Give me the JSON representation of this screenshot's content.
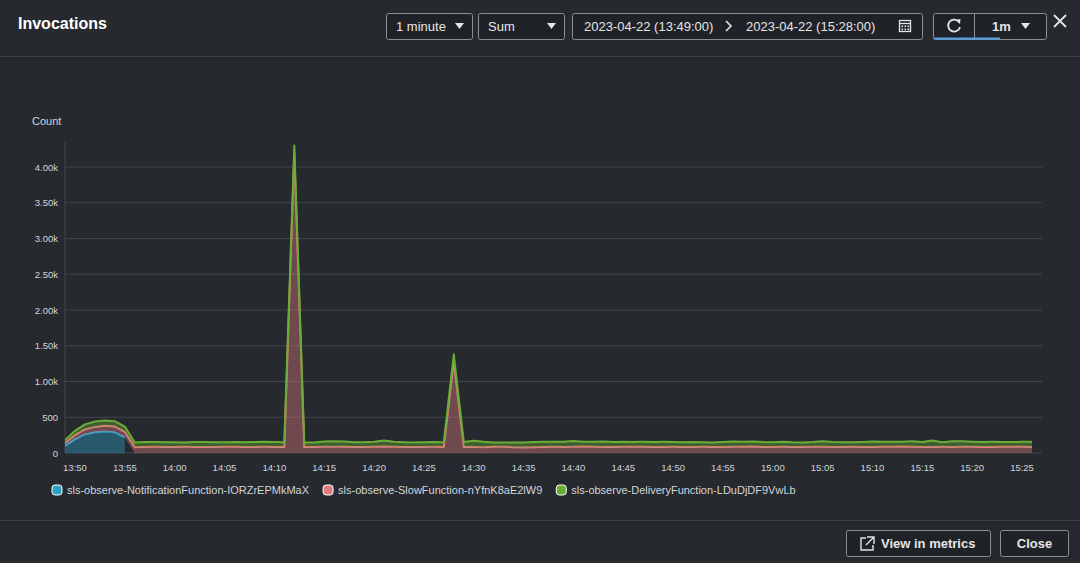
{
  "widget": {
    "period": "1 minute",
    "stat": "Sum",
    "range_start": "2023-04-22 (13:49:00)",
    "range_end": "2023-04-22 (15:28:00)",
    "refresh_interval": "1m",
    "buttons": [
      "View in metrics",
      "Close"
    ]
  },
  "chart_data": {
    "type": "area",
    "title": "Invocations",
    "stacked": true,
    "grid": true,
    "legend": "bottom",
    "y_label": "Count",
    "categories": [
      null,
      "13:50",
      null,
      null,
      null,
      null,
      "13:55",
      null,
      null,
      null,
      null,
      "14:00",
      null,
      null,
      null,
      null,
      "14:05",
      null,
      null,
      null,
      null,
      "14:10",
      null,
      null,
      null,
      null,
      "14:15",
      null,
      null,
      null,
      null,
      "14:20",
      null,
      null,
      null,
      null,
      "14:25",
      null,
      null,
      null,
      null,
      "14:30",
      null,
      null,
      null,
      null,
      "14:35",
      null,
      null,
      null,
      null,
      "14:40",
      null,
      null,
      null,
      null,
      "14:45",
      null,
      null,
      null,
      null,
      "14:50",
      null,
      null,
      null,
      null,
      "14:55",
      null,
      null,
      null,
      null,
      "15:00",
      null,
      null,
      null,
      null,
      "15:05",
      null,
      null,
      null,
      null,
      "15:10",
      null,
      null,
      null,
      null,
      "15:15",
      null,
      null,
      null,
      null,
      "15:20",
      null,
      null,
      null,
      null,
      "15:25",
      null
    ],
    "ylim": [
      0,
      4350
    ],
    "yticks": [
      0,
      500,
      {
        "value": 1000,
        "label": "1.00k"
      },
      {
        "value": 1500,
        "label": "1.50k"
      },
      {
        "value": 2000,
        "label": "2.00k"
      },
      {
        "value": 2500,
        "label": "2.50k"
      },
      {
        "value": 3000,
        "label": "3.00k"
      },
      {
        "value": 3500,
        "label": "3.50k"
      },
      {
        "value": 4000,
        "label": "4.00k"
      }
    ],
    "series": [
      {
        "name": "sls-observe-NotificationFunction-IORZrEPMkMaX",
        "color": "#2ea0c9",
        "values": [
          100,
          190,
          260,
          290,
          300,
          290,
          220,
          null,
          null,
          null,
          null,
          null,
          null,
          null,
          null,
          null,
          null,
          null,
          null,
          null,
          null,
          null,
          null,
          null,
          null,
          null,
          null,
          null,
          null,
          null,
          null,
          null,
          null,
          null,
          null,
          null,
          null,
          null,
          null,
          null,
          null,
          null,
          null,
          null,
          null,
          null,
          null,
          null,
          null,
          null,
          null,
          null,
          null,
          null,
          null,
          null,
          null,
          null,
          null,
          null,
          null,
          null,
          null,
          null,
          null,
          null,
          null,
          null,
          null,
          null,
          null,
          null,
          null,
          null,
          null,
          null,
          null,
          null,
          null,
          null,
          null,
          null,
          null,
          null,
          null,
          null,
          null,
          null,
          null,
          null,
          null,
          null,
          null,
          null,
          null,
          null,
          null,
          null
        ]
      },
      {
        "name": "sls-observe-SlowFunction-nYfnK8aE2lW9",
        "color": "#e07b7f",
        "values": [
          40,
          60,
          70,
          75,
          80,
          80,
          75,
          82,
          85,
          86,
          85,
          84,
          86,
          85,
          83,
          85,
          88,
          86,
          85,
          84,
          86,
          85,
          84,
          4200,
          85,
          84,
          86,
          88,
          87,
          85,
          84,
          86,
          90,
          86,
          85,
          84,
          85,
          86,
          85,
          1280,
          85,
          84,
          82,
          86,
          88,
          80,
          76,
          82,
          84,
          86,
          85,
          88,
          90,
          86,
          85,
          84,
          86,
          88,
          86,
          85,
          84,
          86,
          85,
          84,
          86,
          85,
          84,
          86,
          88,
          90,
          85,
          84,
          86,
          85,
          84,
          86,
          88,
          85,
          84,
          86,
          85,
          84,
          86,
          88,
          90,
          86,
          85,
          84,
          86,
          85,
          88,
          86,
          85,
          84,
          86,
          88,
          86,
          85
        ]
      },
      {
        "name": "sls-observe-DeliveryFunction-LDuDjDF9VwLb",
        "color": "#69ae34",
        "values": [
          40,
          60,
          70,
          75,
          75,
          75,
          75,
          65,
          68,
          67,
          66,
          65,
          62,
          68,
          70,
          66,
          64,
          68,
          66,
          70,
          72,
          68,
          66,
          100,
          66,
          62,
          75,
          76,
          74,
          66,
          65,
          70,
          84,
          70,
          66,
          64,
          66,
          68,
          66,
          100,
          70,
          88,
          75,
          62,
          58,
          66,
          70,
          72,
          74,
          70,
          74,
          80,
          68,
          72,
          76,
          70,
          72,
          66,
          70,
          70,
          72,
          68,
          66,
          70,
          64,
          62,
          70,
          74,
          68,
          72,
          70,
          68,
          72,
          66,
          64,
          68,
          76,
          70,
          68,
          66,
          70,
          76,
          72,
          70,
          66,
          78,
          68,
          90,
          64,
          80,
          76,
          72,
          70,
          72,
          68,
          66,
          70,
          72
        ]
      }
    ]
  }
}
